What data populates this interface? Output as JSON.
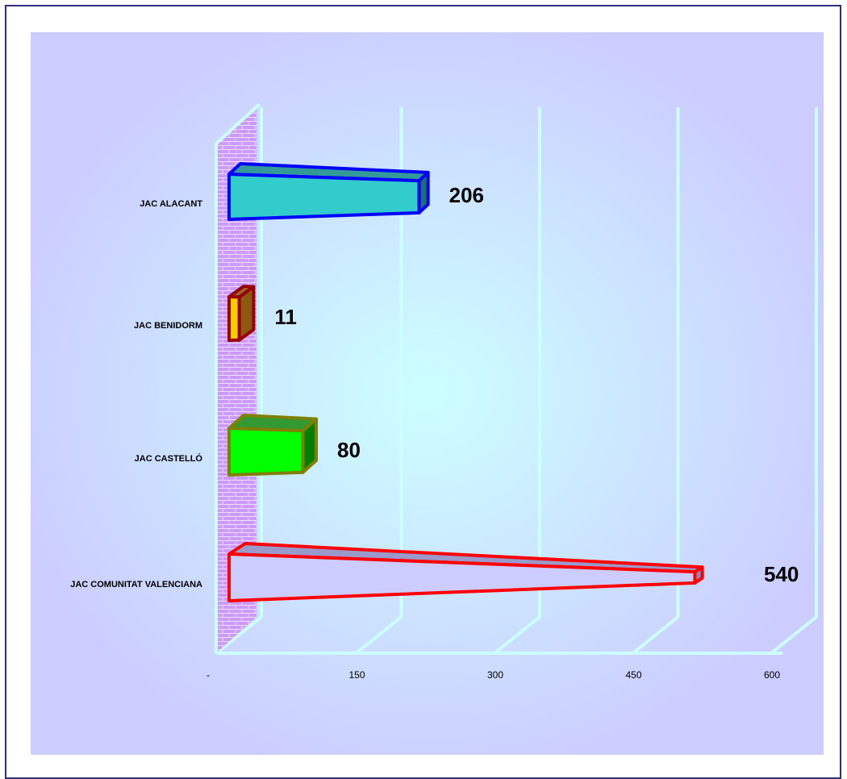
{
  "chart_data": {
    "type": "bar",
    "orientation": "horizontal",
    "style": "3d-cone-bars",
    "categories": [
      "JAC ALACANT",
      "JAC BENIDORM",
      "JAC CASTELLÓ",
      "JAC COMUNITAT VALENCIANA"
    ],
    "values": [
      206,
      11,
      80,
      540
    ],
    "data_labels": [
      "206",
      "11",
      "80",
      "540"
    ],
    "xlim": [
      0,
      600
    ],
    "x_ticks": [
      0,
      150,
      300,
      450,
      600
    ],
    "x_tick_labels": [
      "-",
      "150",
      "300",
      "450",
      "600"
    ],
    "title": "",
    "xlabel": "",
    "ylabel": "",
    "grid": true,
    "legend": "none",
    "colors": {
      "plot_background": "#ccccff",
      "glow_center": "#ccffff",
      "gridline": "#ccffff",
      "wall": "#cc99ff",
      "bars": [
        {
          "face": "#33cccc",
          "top": "#339999",
          "side": "#1f6f6f",
          "stroke": "#0000ff"
        },
        {
          "face": "#ffcc00",
          "top": "#996633",
          "side": "#8a5a10",
          "stroke": "#990000"
        },
        {
          "face": "#00ff00",
          "top": "#339933",
          "side": "#008000",
          "stroke": "#808000"
        },
        {
          "face": "#ccccff",
          "top": "#9999cc",
          "side": "#8888bb",
          "stroke": "#ff0000"
        }
      ]
    }
  }
}
